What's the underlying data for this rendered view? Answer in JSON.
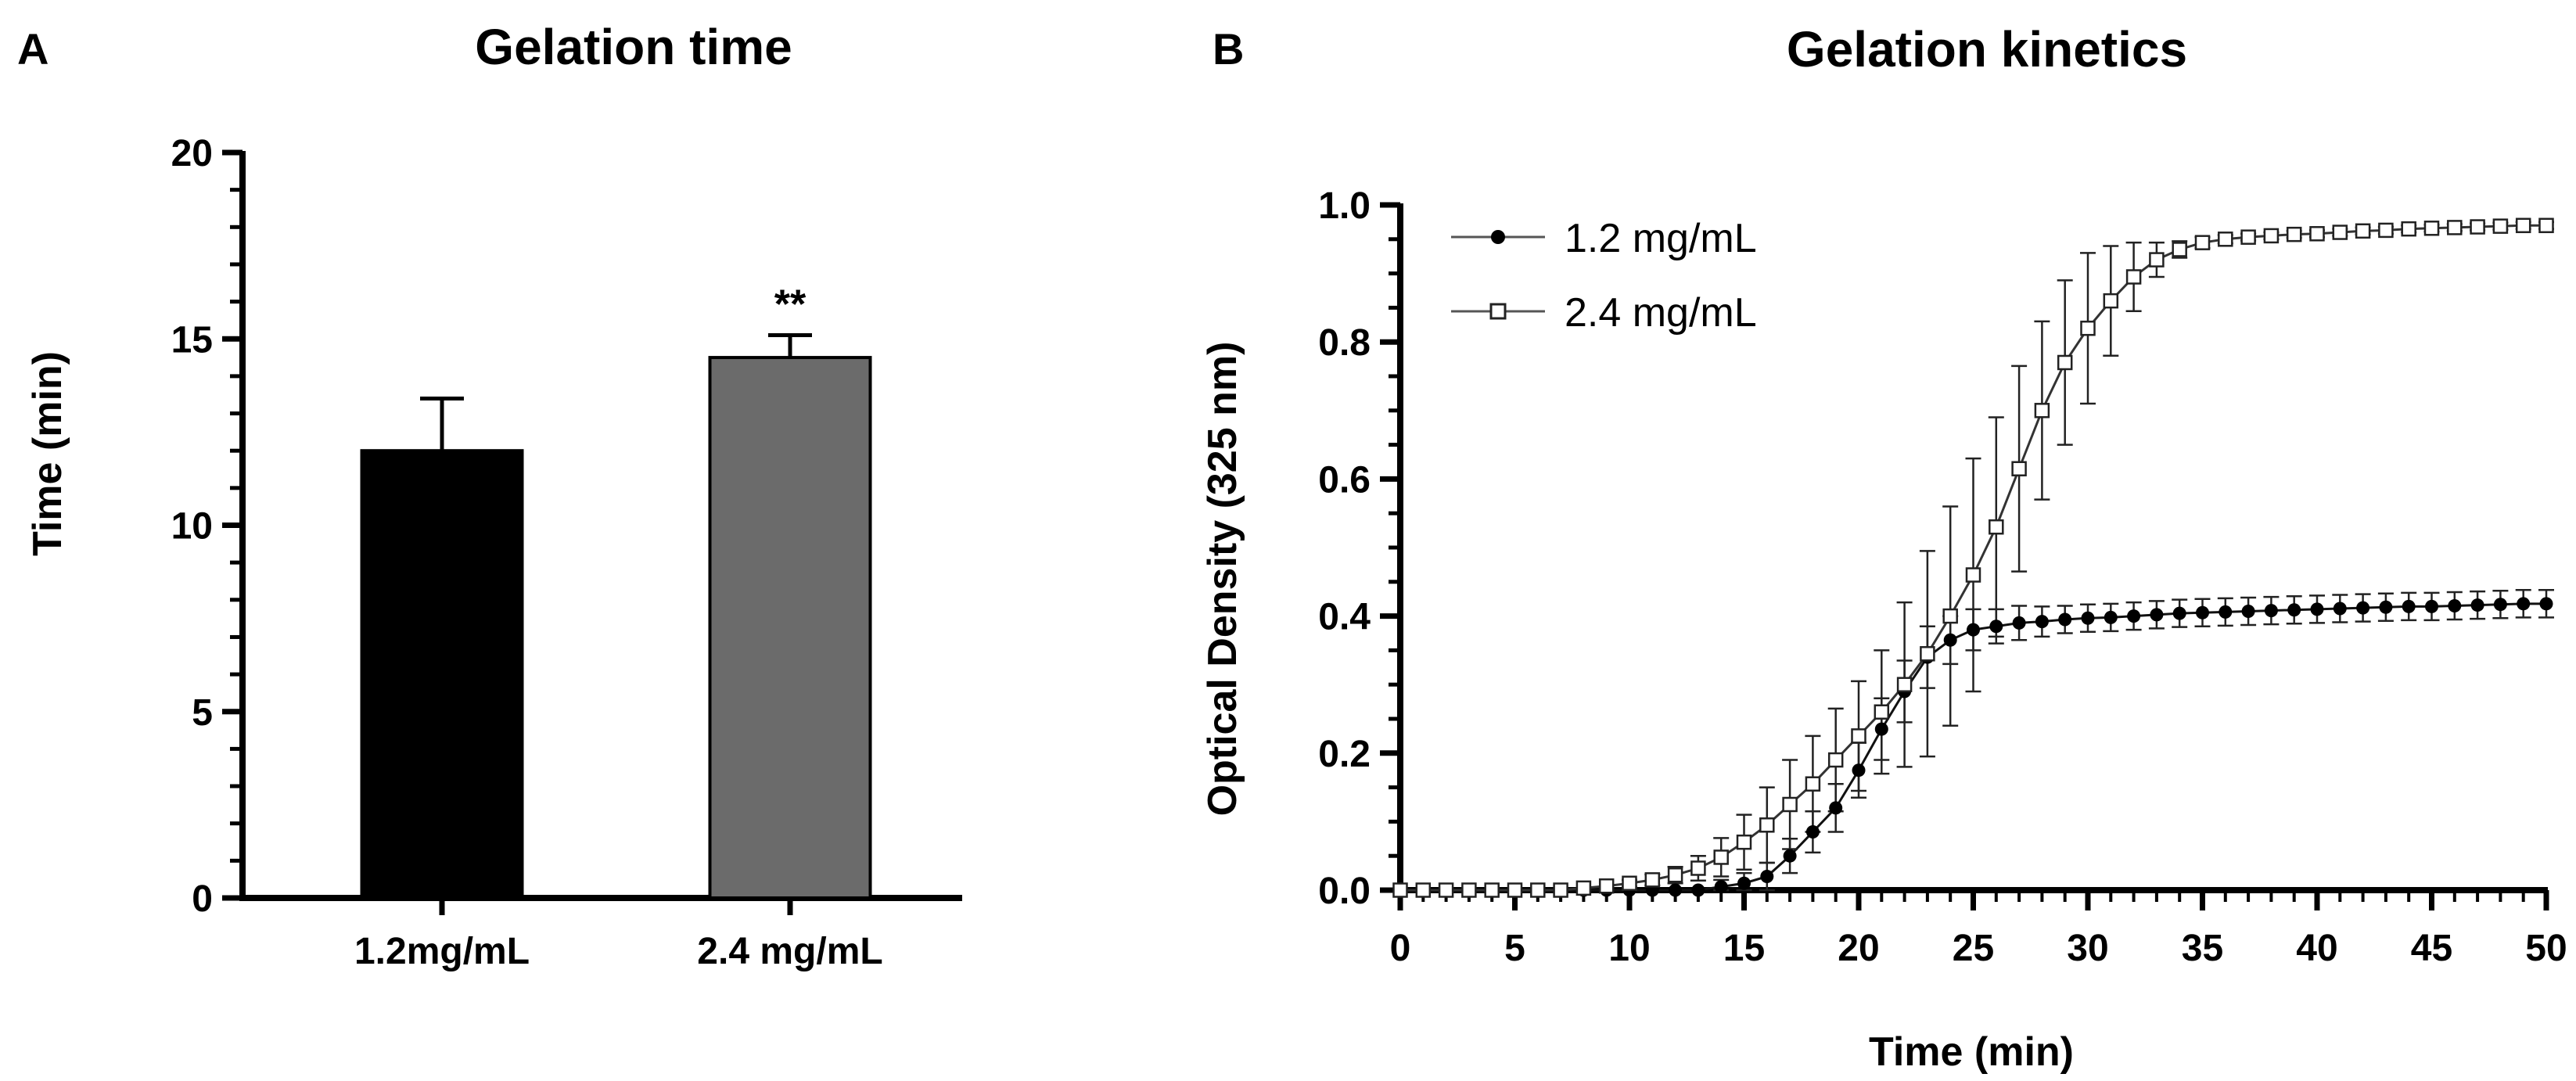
{
  "chart_data": [
    {
      "panel": "A",
      "type": "bar",
      "title": "Gelation time",
      "xlabel": "",
      "ylabel": "Time (min)",
      "ylim": [
        0,
        20
      ],
      "yticks": [
        0,
        5,
        10,
        15,
        20
      ],
      "categories": [
        "1.2mg/mL",
        "2.4 mg/mL"
      ],
      "values": [
        12.0,
        14.5
      ],
      "errors": [
        1.4,
        0.6
      ],
      "bar_colors": [
        "#000000",
        "#6b6b6b"
      ],
      "annotations": [
        "",
        "**"
      ]
    },
    {
      "panel": "B",
      "type": "line",
      "title": "Gelation kinetics",
      "xlabel": "Time (min)",
      "ylabel": "Optical Density (325 nm)",
      "xlim": [
        0,
        50
      ],
      "ylim": [
        0,
        1.0
      ],
      "xticks": [
        0,
        5,
        10,
        15,
        20,
        25,
        30,
        35,
        40,
        45,
        50
      ],
      "yticks": [
        0.0,
        0.2,
        0.4,
        0.6,
        0.8,
        1.0
      ],
      "yticklabels": [
        "0.0",
        "0.2",
        "0.4",
        "0.6",
        "0.8",
        "1.0"
      ],
      "legend_position": "top-left",
      "x": [
        0,
        1,
        2,
        3,
        4,
        5,
        6,
        7,
        8,
        9,
        10,
        11,
        12,
        13,
        14,
        15,
        16,
        17,
        18,
        19,
        20,
        21,
        22,
        23,
        24,
        25,
        26,
        27,
        28,
        29,
        30,
        31,
        32,
        33,
        34,
        35,
        36,
        37,
        38,
        39,
        40,
        41,
        42,
        43,
        44,
        45,
        46,
        47,
        48,
        49,
        50
      ],
      "series": [
        {
          "name": "1.2 mg/mL",
          "marker": "filled-circle",
          "values": [
            0.0,
            0.0,
            0.0,
            0.0,
            0.0,
            0.0,
            0.0,
            0.0,
            0.0,
            0.0,
            0.0,
            0.0,
            0.0,
            0.0,
            0.005,
            0.01,
            0.02,
            0.05,
            0.085,
            0.12,
            0.175,
            0.235,
            0.29,
            0.34,
            0.365,
            0.38,
            0.385,
            0.39,
            0.392,
            0.395,
            0.397,
            0.398,
            0.4,
            0.402,
            0.404,
            0.405,
            0.406,
            0.407,
            0.408,
            0.409,
            0.41,
            0.411,
            0.412,
            0.413,
            0.414,
            0.414,
            0.415,
            0.416,
            0.417,
            0.418,
            0.418
          ],
          "errors": [
            0.0,
            0.0,
            0.0,
            0.0,
            0.0,
            0.0,
            0.0,
            0.0,
            0.0,
            0.0,
            0.0,
            0.0,
            0.0,
            0.0,
            0.01,
            0.015,
            0.02,
            0.025,
            0.03,
            0.035,
            0.04,
            0.045,
            0.045,
            0.045,
            0.035,
            0.03,
            0.025,
            0.025,
            0.022,
            0.02,
            0.02,
            0.02,
            0.02,
            0.02,
            0.02,
            0.02,
            0.02,
            0.02,
            0.02,
            0.02,
            0.02,
            0.02,
            0.02,
            0.02,
            0.02,
            0.02,
            0.02,
            0.02,
            0.02,
            0.02,
            0.02
          ]
        },
        {
          "name": "2.4 mg/mL",
          "marker": "open-square",
          "values": [
            0.0,
            0.0,
            0.0,
            0.0,
            0.0,
            0.0,
            0.0,
            0.0,
            0.003,
            0.006,
            0.01,
            0.015,
            0.022,
            0.032,
            0.048,
            0.07,
            0.095,
            0.125,
            0.155,
            0.19,
            0.225,
            0.26,
            0.3,
            0.345,
            0.4,
            0.46,
            0.53,
            0.615,
            0.7,
            0.77,
            0.82,
            0.86,
            0.895,
            0.92,
            0.935,
            0.945,
            0.95,
            0.953,
            0.955,
            0.957,
            0.958,
            0.96,
            0.962,
            0.963,
            0.965,
            0.966,
            0.967,
            0.968,
            0.969,
            0.97,
            0.97
          ],
          "errors": [
            0.0,
            0.0,
            0.0,
            0.0,
            0.0,
            0.0,
            0.0,
            0.0,
            0.0,
            0.0,
            0.005,
            0.008,
            0.012,
            0.018,
            0.028,
            0.04,
            0.055,
            0.065,
            0.07,
            0.075,
            0.08,
            0.09,
            0.12,
            0.15,
            0.16,
            0.17,
            0.16,
            0.15,
            0.13,
            0.12,
            0.11,
            0.08,
            0.05,
            0.025,
            0.012,
            0.008,
            0.006,
            0.005,
            0.005,
            0.005,
            0.005,
            0.005,
            0.005,
            0.005,
            0.005,
            0.005,
            0.005,
            0.005,
            0.005,
            0.005,
            0.005
          ]
        }
      ]
    }
  ]
}
